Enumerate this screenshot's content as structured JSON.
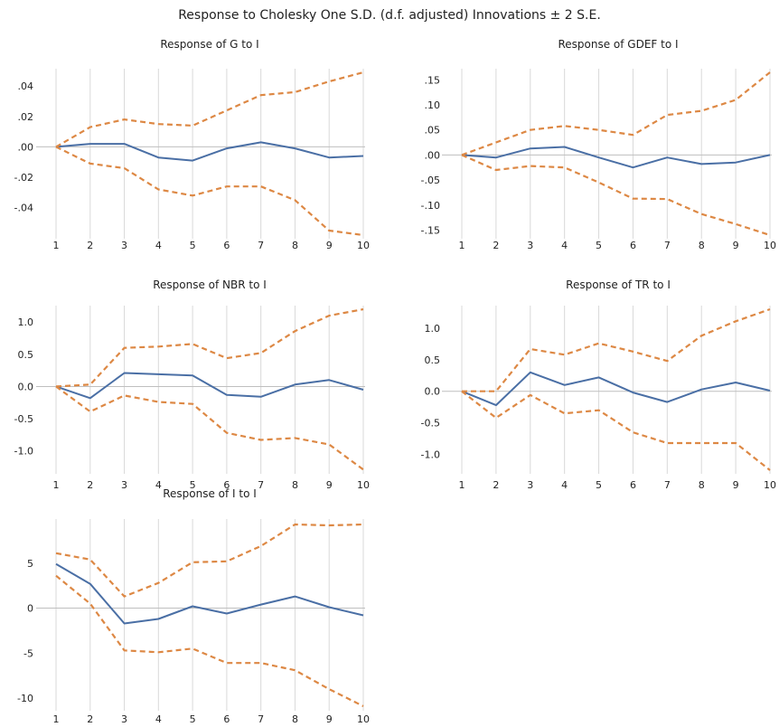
{
  "main_title": "Response to Cholesky One S.D. (d.f. adjusted) Innovations ± 2 S.E.",
  "colors": {
    "response": "#4a6fa5",
    "band": "#dd8844"
  },
  "chart_data": [
    {
      "type": "line",
      "title": "Response of G to I",
      "x": [
        1,
        2,
        3,
        4,
        5,
        6,
        7,
        8,
        9,
        10
      ],
      "ylim": [
        -0.058,
        0.049
      ],
      "yticks": [
        0.04,
        0.02,
        0.0,
        -0.02,
        -0.04
      ],
      "ytick_labels": [
        ".04",
        ".02",
        ".00",
        "-.02",
        "-.04"
      ],
      "series": [
        {
          "role": "response",
          "values": [
            0.0,
            0.002,
            0.002,
            -0.007,
            -0.009,
            -0.001,
            0.003,
            -0.001,
            -0.007,
            -0.006
          ]
        },
        {
          "role": "upper",
          "values": [
            0.0,
            0.013,
            0.018,
            0.015,
            0.014,
            0.024,
            0.034,
            0.036,
            0.043,
            0.049
          ]
        },
        {
          "role": "lower",
          "values": [
            0.0,
            -0.011,
            -0.014,
            -0.028,
            -0.032,
            -0.026,
            -0.026,
            -0.035,
            -0.055,
            -0.058
          ]
        }
      ]
    },
    {
      "type": "line",
      "title": "Response of GDEF to I",
      "x": [
        1,
        2,
        3,
        4,
        5,
        6,
        7,
        8,
        9,
        10
      ],
      "ylim": [
        -0.16,
        0.165
      ],
      "yticks": [
        0.15,
        0.1,
        0.05,
        0.0,
        -0.05,
        -0.1,
        -0.15
      ],
      "ytick_labels": [
        ".15",
        ".10",
        ".05",
        ".00",
        "-.05",
        "-.10",
        "-.15"
      ],
      "series": [
        {
          "role": "response",
          "values": [
            0.0,
            -0.005,
            0.013,
            0.016,
            -0.005,
            -0.025,
            -0.005,
            -0.018,
            -0.015,
            0.0
          ]
        },
        {
          "role": "upper",
          "values": [
            0.0,
            0.025,
            0.05,
            0.058,
            0.05,
            0.04,
            0.08,
            0.088,
            0.11,
            0.165
          ]
        },
        {
          "role": "lower",
          "values": [
            0.0,
            -0.03,
            -0.022,
            -0.025,
            -0.055,
            -0.087,
            -0.088,
            -0.118,
            -0.138,
            -0.16
          ]
        }
      ]
    },
    {
      "type": "line",
      "title": "Response of NBR to I",
      "x": [
        1,
        2,
        3,
        4,
        5,
        6,
        7,
        8,
        9,
        10
      ],
      "ylim": [
        -1.3,
        1.2
      ],
      "yticks": [
        1.0,
        0.5,
        0.0,
        -0.5,
        -1.0
      ],
      "ytick_labels": [
        "1.0",
        "0.5",
        "0.0",
        "-0.5",
        "-1.0"
      ],
      "series": [
        {
          "role": "response",
          "values": [
            0.0,
            -0.18,
            0.21,
            0.19,
            0.17,
            -0.13,
            -0.16,
            0.03,
            0.1,
            -0.05
          ]
        },
        {
          "role": "upper",
          "values": [
            0.0,
            0.03,
            0.6,
            0.62,
            0.66,
            0.44,
            0.52,
            0.86,
            1.1,
            1.2
          ]
        },
        {
          "role": "lower",
          "values": [
            0.0,
            -0.39,
            -0.14,
            -0.24,
            -0.27,
            -0.72,
            -0.83,
            -0.8,
            -0.9,
            -1.29
          ]
        }
      ]
    },
    {
      "type": "line",
      "title": "Response of TR to I",
      "x": [
        1,
        2,
        3,
        4,
        5,
        6,
        7,
        8,
        9,
        10
      ],
      "ylim": [
        -1.25,
        1.3
      ],
      "yticks": [
        1.0,
        0.5,
        0.0,
        -0.5,
        -1.0
      ],
      "ytick_labels": [
        "1.0",
        "0.5",
        "0.0",
        "-0.5",
        "-1.0"
      ],
      "series": [
        {
          "role": "response",
          "values": [
            0.0,
            -0.22,
            0.3,
            0.1,
            0.22,
            -0.02,
            -0.17,
            0.03,
            0.14,
            0.01
          ]
        },
        {
          "role": "upper",
          "values": [
            0.0,
            0.0,
            0.67,
            0.58,
            0.76,
            0.63,
            0.48,
            0.88,
            1.11,
            1.3
          ]
        },
        {
          "role": "lower",
          "values": [
            0.0,
            -0.42,
            -0.06,
            -0.35,
            -0.3,
            -0.65,
            -0.82,
            -0.82,
            -0.82,
            -1.25
          ]
        }
      ]
    },
    {
      "type": "line",
      "title": "Response of I to I",
      "x": [
        1,
        2,
        3,
        4,
        5,
        6,
        7,
        8,
        9,
        10
      ],
      "ylim": [
        -11,
        9.5
      ],
      "yticks": [
        5,
        0,
        -5,
        -10
      ],
      "ytick_labels": [
        "5",
        "0",
        "-5",
        "-10"
      ],
      "series": [
        {
          "role": "response",
          "values": [
            4.9,
            2.7,
            -1.7,
            -1.2,
            0.2,
            -0.6,
            0.4,
            1.3,
            0.1,
            -0.8
          ]
        },
        {
          "role": "upper",
          "values": [
            6.1,
            5.4,
            1.3,
            2.8,
            5.1,
            5.2,
            6.9,
            9.3,
            9.2,
            9.3
          ]
        },
        {
          "role": "lower",
          "values": [
            3.6,
            0.5,
            -4.7,
            -4.9,
            -4.5,
            -6.1,
            -6.1,
            -6.9,
            -9.0,
            -10.9
          ]
        }
      ]
    }
  ]
}
